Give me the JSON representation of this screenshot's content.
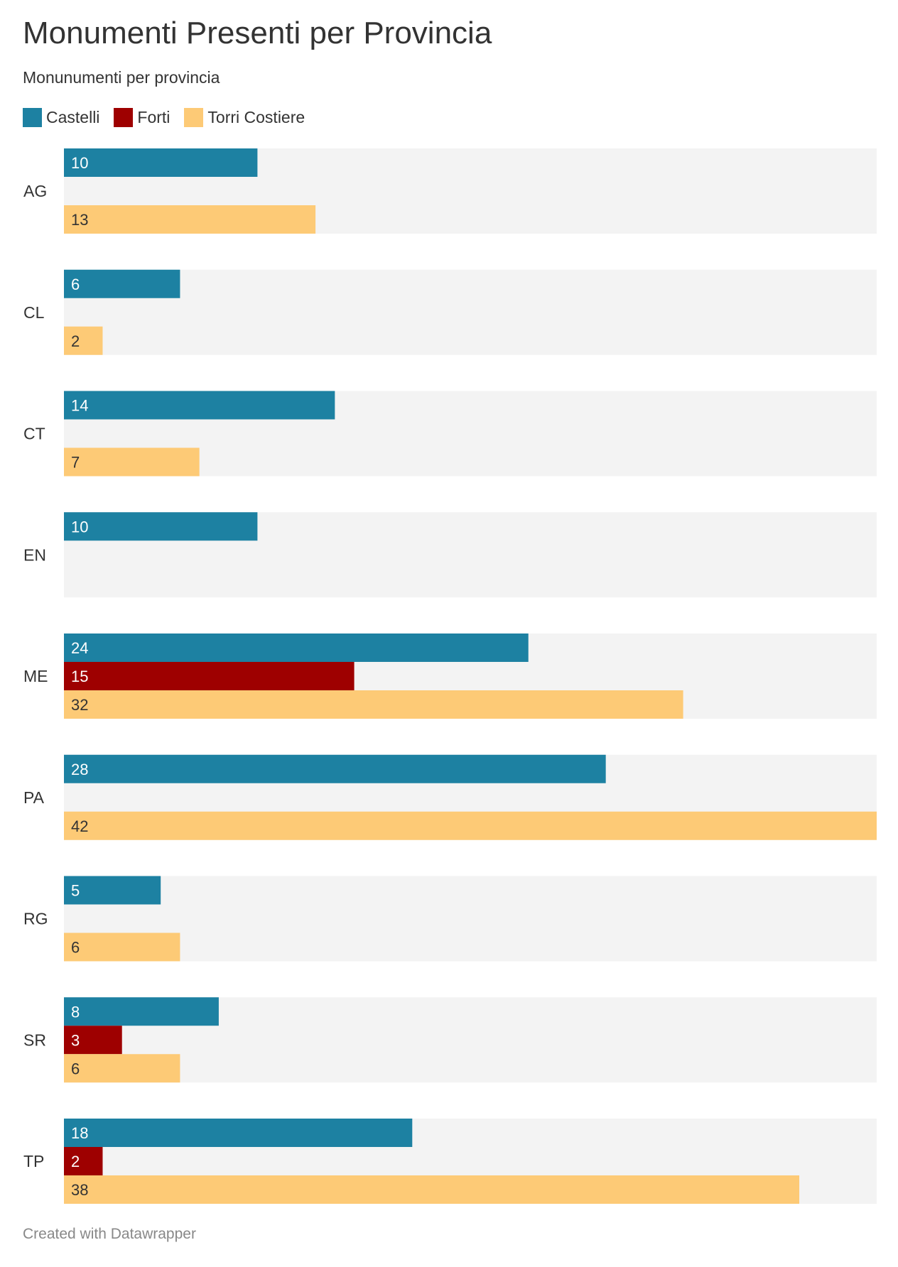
{
  "title": "Monumenti Presenti per Provincia",
  "subtitle": "Monunumenti per provincia",
  "credit": "Created with Datawrapper",
  "chart_data": {
    "type": "bar",
    "orientation": "horizontal",
    "grouped": true,
    "categories": [
      "AG",
      "CL",
      "CT",
      "EN",
      "ME",
      "PA",
      "RG",
      "SR",
      "TP"
    ],
    "series": [
      {
        "name": "Castelli",
        "color": "#1d81a2",
        "label_color": "#ffffff",
        "values": [
          10,
          6,
          14,
          10,
          24,
          28,
          5,
          8,
          18
        ]
      },
      {
        "name": "Forti",
        "color": "#9e0000",
        "label_color": "#ffffff",
        "values": [
          null,
          null,
          null,
          null,
          15,
          null,
          null,
          3,
          2
        ]
      },
      {
        "name": "Torri Costiere",
        "color": "#fdca76",
        "label_color": "#333333",
        "values": [
          13,
          2,
          7,
          null,
          32,
          42,
          6,
          6,
          38
        ]
      }
    ],
    "xlim": [
      0,
      42
    ],
    "legend": "top-left",
    "grid": false,
    "background_band_color": "#f3f3f3"
  }
}
